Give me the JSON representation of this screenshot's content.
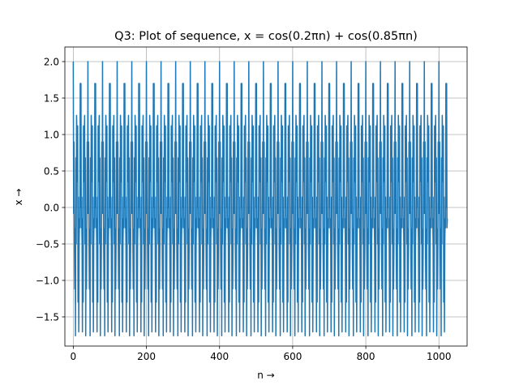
{
  "chart_data": {
    "type": "line",
    "title": "Q3: Plot of sequence, x = cos(0.2πn) + cos(0.85πn)",
    "xlabel": "n →",
    "ylabel": "x →",
    "xlim": [
      -23,
      1077
    ],
    "ylim": [
      -1.9,
      2.2
    ],
    "x_ticks": [
      0,
      200,
      400,
      600,
      800,
      1000
    ],
    "x_tick_labels": [
      "0",
      "200",
      "400",
      "600",
      "800",
      "1000"
    ],
    "y_ticks": [
      -1.5,
      -1.0,
      -0.5,
      0.0,
      0.5,
      1.0,
      1.5,
      2.0
    ],
    "y_tick_labels": [
      "−1.5",
      "−1.0",
      "−0.5",
      "0.0",
      "0.5",
      "1.0",
      "1.5",
      "2.0"
    ],
    "grid": true,
    "series": [
      {
        "color": "#1f77b4",
        "formula": "cos(0.2πn) + cos(0.85πn)",
        "n_start": 0,
        "n_end": 1023
      }
    ]
  }
}
